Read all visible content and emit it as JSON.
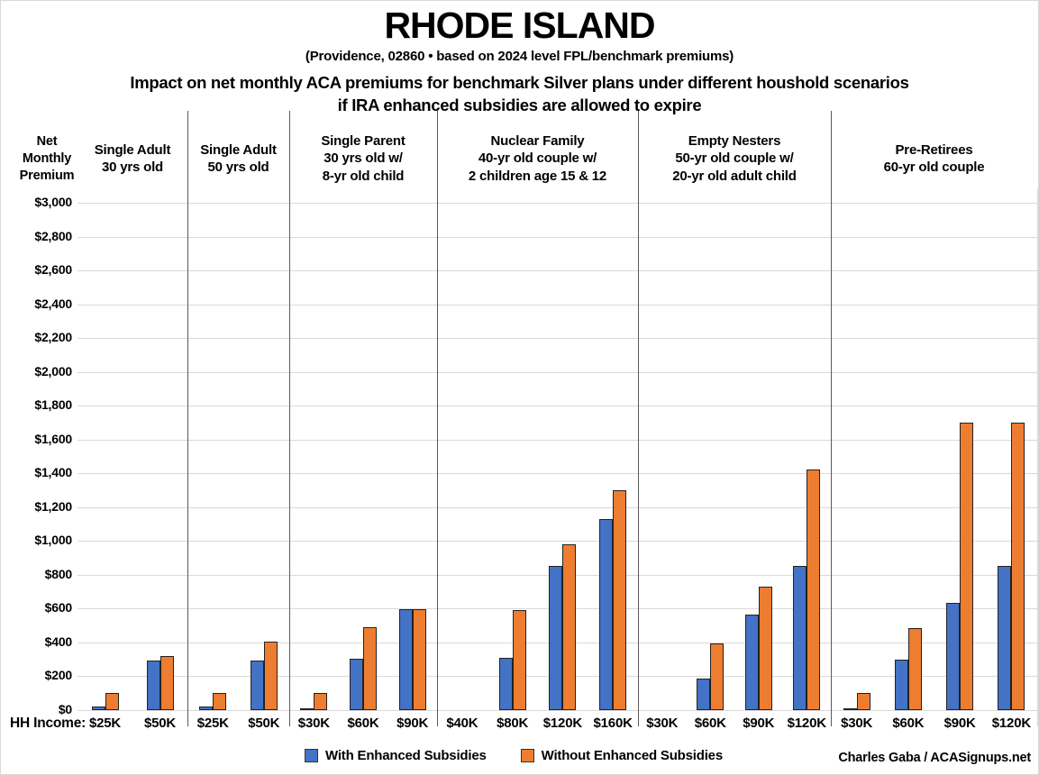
{
  "header": {
    "title": "RHODE ISLAND",
    "subtitle": "(Providence, 02860 • based on 2024 level FPL/benchmark premiums)",
    "description_line1": "Impact on net monthly ACA premiums for benchmark Silver plans under different houshold scenarios",
    "description_line2": "if IRA enhanced subsidies are allowed to expire"
  },
  "chart_data": {
    "type": "bar",
    "title": "Impact on net monthly ACA premiums for benchmark Silver plans under different houshold scenarios if IRA enhanced subsidies are allowed to expire",
    "ylabel": "Net\nMonthly\nPremium",
    "xlabel": "HH Income:",
    "ylim": [
      0,
      3000
    ],
    "ytick_step": 200,
    "ytick_labels": [
      "$0",
      "$200",
      "$400",
      "$600",
      "$800",
      "$1,000",
      "$1,200",
      "$1,400",
      "$1,600",
      "$1,800",
      "$2,000",
      "$2,200",
      "$2,400",
      "$2,600",
      "$2,800",
      "$3,000"
    ],
    "grid": true,
    "legend_position": "bottom",
    "series_names": [
      "With Enhanced Subsidies",
      "Without Enhanced Subsidies"
    ],
    "series_colors": [
      "#4472C4",
      "#ED7D31"
    ],
    "groups": [
      {
        "label": "Single Adult\n30 yrs old",
        "categories": [
          "$25K",
          "$50K"
        ],
        "series": [
          {
            "name": "With Enhanced Subsidies",
            "values": [
              20,
              295
            ]
          },
          {
            "name": "Without Enhanced Subsidies",
            "values": [
              100,
              320
            ]
          }
        ]
      },
      {
        "label": "Single Adult\n50 yrs old",
        "categories": [
          "$25K",
          "$50K"
        ],
        "series": [
          {
            "name": "With Enhanced Subsidies",
            "values": [
              20,
              295
            ]
          },
          {
            "name": "Without Enhanced Subsidies",
            "values": [
              100,
              405
            ]
          }
        ]
      },
      {
        "label": "Single Parent\n30 yrs old w/\n8-yr old child",
        "categories": [
          "$30K",
          "$60K",
          "$90K"
        ],
        "series": [
          {
            "name": "With Enhanced Subsidies",
            "values": [
              5,
              305,
              595
            ]
          },
          {
            "name": "Without Enhanced Subsidies",
            "values": [
              100,
              490,
              595
            ]
          }
        ]
      },
      {
        "label": "Nuclear Family\n40-yr old couple w/\n2 children age 15 & 12",
        "categories": [
          "$40K",
          "$80K",
          "$120K",
          "$160K"
        ],
        "series": [
          {
            "name": "With Enhanced Subsidies",
            "values": [
              0,
              310,
              850,
              1130
            ]
          },
          {
            "name": "Without Enhanced Subsidies",
            "values": [
              0,
              590,
              980,
              1300
            ]
          }
        ]
      },
      {
        "label": "Empty Nesters\n50-yr old couple w/\n20-yr old adult child",
        "categories": [
          "$30K",
          "$60K",
          "$90K",
          "$120K"
        ],
        "series": [
          {
            "name": "With Enhanced Subsidies",
            "values": [
              0,
              185,
              565,
              850
            ]
          },
          {
            "name": "Without Enhanced Subsidies",
            "values": [
              0,
              395,
              730,
              1425
            ]
          }
        ]
      },
      {
        "label": "Pre-Retirees\n60-yr old couple",
        "categories": [
          "$30K",
          "$60K",
          "$90K",
          "$120K"
        ],
        "series": [
          {
            "name": "With Enhanced Subsidies",
            "values": [
              5,
              300,
              635,
              850
            ]
          },
          {
            "name": "Without Enhanced Subsidies",
            "values": [
              100,
              485,
              1700,
              1700
            ]
          }
        ]
      }
    ],
    "colors": {
      "gridline": "#d9d9d9",
      "separator": "#5a5a5a",
      "bar_border": "#222222",
      "plot_border": "#c9c9c9"
    }
  },
  "footer": {
    "credit": "Charles Gaba / ACASignups.net"
  }
}
